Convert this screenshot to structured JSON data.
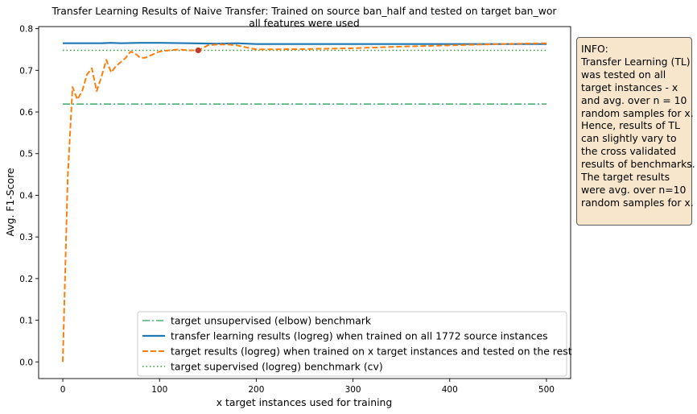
{
  "chart_data": {
    "type": "line",
    "title_lines": [
      "Transfer Learning Results of Naive Transfer: Trained on source ban_half and tested on target ban_wor",
      "all features were used"
    ],
    "xlabel": "x target instances used for training",
    "ylabel": "Avg. F1-Score",
    "xlim": [
      -25,
      525
    ],
    "ylim": [
      -0.04,
      0.805
    ],
    "xticks": [
      0,
      100,
      200,
      300,
      400,
      500
    ],
    "yticks": [
      0.0,
      0.1,
      0.2,
      0.3,
      0.4,
      0.5,
      0.6,
      0.7,
      0.8
    ],
    "grid": false,
    "legend_position": "lower-right",
    "series": [
      {
        "name": "target unsupervised (elbow) benchmark",
        "style": "dashdot",
        "color": "#4caf75",
        "x": [
          0,
          500
        ],
        "y": [
          0.619,
          0.619
        ]
      },
      {
        "name": "transfer learning results (logreg) when trained on all 1772 source instances",
        "style": "solid",
        "color": "#1f77b4",
        "x": [
          0,
          20,
          40,
          50,
          60,
          80,
          100,
          130,
          160,
          180,
          200,
          250,
          300,
          350,
          400,
          450,
          500
        ],
        "y": [
          0.765,
          0.765,
          0.765,
          0.766,
          0.765,
          0.766,
          0.766,
          0.765,
          0.764,
          0.765,
          0.763,
          0.763,
          0.763,
          0.763,
          0.763,
          0.763,
          0.763
        ]
      },
      {
        "name": "target results (logreg) when trained on x target instances and tested on the rest",
        "style": "dashed",
        "color": "#ff7f0e",
        "x": [
          0,
          5,
          10,
          15,
          20,
          25,
          30,
          35,
          40,
          45,
          50,
          55,
          60,
          65,
          70,
          75,
          80,
          85,
          90,
          95,
          100,
          110,
          120,
          130,
          140,
          150,
          160,
          170,
          180,
          190,
          200,
          250,
          300,
          350,
          400,
          450,
          500
        ],
        "y": [
          0.0,
          0.44,
          0.66,
          0.63,
          0.65,
          0.69,
          0.705,
          0.65,
          0.685,
          0.725,
          0.695,
          0.71,
          0.72,
          0.73,
          0.745,
          0.74,
          0.73,
          0.73,
          0.735,
          0.74,
          0.745,
          0.748,
          0.75,
          0.748,
          0.748,
          0.76,
          0.762,
          0.762,
          0.76,
          0.755,
          0.75,
          0.751,
          0.753,
          0.757,
          0.76,
          0.763,
          0.765
        ]
      },
      {
        "name": "target supervised (logreg) benchmark (cv)",
        "style": "dotted",
        "color": "#2ca02c",
        "x": [
          0,
          500
        ],
        "y": [
          0.748,
          0.748
        ]
      }
    ],
    "marker": {
      "x": 140,
      "y": 0.748,
      "color": "#c0392b"
    }
  },
  "info": {
    "lines": [
      "INFO:",
      "Transfer Learning (TL)",
      "was tested on all",
      "target instances - x",
      "and avg. over n = 10",
      "random samples for x.",
      "Hence, results of TL",
      "can slightly vary to",
      "the cross validated",
      "results of benchmarks.",
      "The target results",
      "were avg. over n=10",
      "random samples for x."
    ]
  }
}
